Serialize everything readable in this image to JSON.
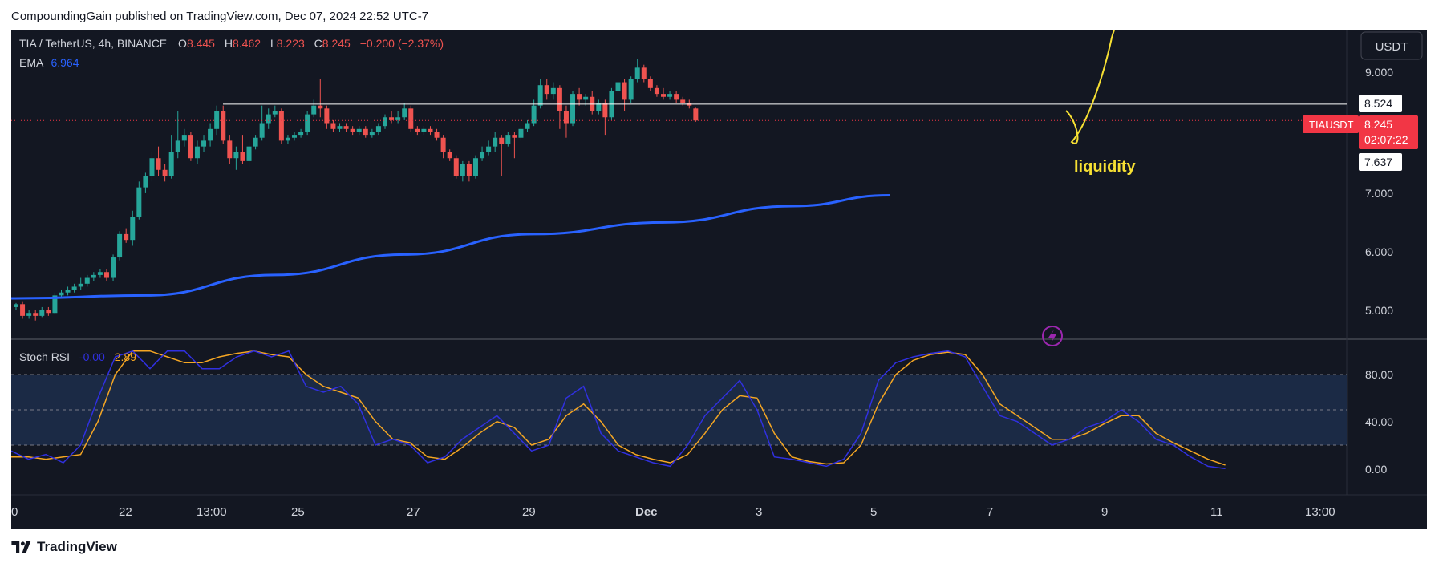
{
  "header": {
    "caption": "CompoundingGain published on TradingView.com, Dec 07, 2024 22:52 UTC-7"
  },
  "legend": {
    "symbol": "TIA / TetherUS, 4h, BINANCE",
    "o_label": "O",
    "o_value": "8.445",
    "h_label": "H",
    "h_value": "8.462",
    "l_label": "L",
    "l_value": "8.223",
    "c_label": "C",
    "c_value": "8.245",
    "change": "−0.200 (−2.37%)",
    "ema_label": "EMA",
    "ema_value": "6.964"
  },
  "currency_button": "USDT",
  "price_axis": {
    "labels": [
      "9.000",
      "7.000",
      "6.000",
      "5.000"
    ],
    "level_high": "8.524",
    "level_low": "7.637",
    "ticker": "TIAUSDT",
    "last_price": "8.245",
    "countdown": "02:07:22"
  },
  "annotation": {
    "text": "liquidity"
  },
  "stoch": {
    "label": "Stoch RSI",
    "k_value": "-0.00",
    "d_value": "2.89",
    "axis_labels": [
      "80.00",
      "40.00",
      "0.00"
    ]
  },
  "time_axis": {
    "labels": [
      "0",
      "22",
      "13:00",
      "25",
      "27",
      "29",
      "Dec",
      "3",
      "5",
      "7",
      "9",
      "11",
      "13:00"
    ]
  },
  "footer": {
    "brand": "TradingView"
  },
  "colors": {
    "background": "#131722",
    "up": "#26a69a",
    "down": "#ef5350",
    "ema": "#2962ff",
    "stoch_k": "#3030e0",
    "stoch_d": "#f5a623",
    "annotation": "#f7e033"
  },
  "chart_data": [
    {
      "type": "candlestick",
      "ylim": [
        4.5,
        9.8
      ],
      "price_ticks": [
        9.0,
        7.0,
        6.0,
        5.0
      ],
      "horizontal_levels": [
        8.524,
        7.637
      ],
      "last_price": 8.245,
      "ema": {
        "name": "EMA",
        "x": [
          0,
          20,
          40,
          60,
          80,
          100,
          120,
          135
        ],
        "values": [
          5.2,
          5.25,
          5.6,
          5.95,
          6.3,
          6.5,
          6.78,
          6.964
        ]
      },
      "candles": [
        [
          5.05,
          5.1,
          5.0,
          5.12
        ],
        [
          5.1,
          4.9,
          4.85,
          5.15
        ],
        [
          4.9,
          4.95,
          4.85,
          5.0
        ],
        [
          4.95,
          4.9,
          4.82,
          5.0
        ],
        [
          4.9,
          5.0,
          4.88,
          5.05
        ],
        [
          5.0,
          4.95,
          4.9,
          5.05
        ],
        [
          4.95,
          5.25,
          4.93,
          5.3
        ],
        [
          5.25,
          5.3,
          5.2,
          5.35
        ],
        [
          5.3,
          5.35,
          5.25,
          5.4
        ],
        [
          5.35,
          5.4,
          5.3,
          5.45
        ],
        [
          5.4,
          5.45,
          5.35,
          5.55
        ],
        [
          5.45,
          5.55,
          5.4,
          5.6
        ],
        [
          5.55,
          5.6,
          5.5,
          5.65
        ],
        [
          5.6,
          5.65,
          5.55,
          5.7
        ],
        [
          5.65,
          5.55,
          5.5,
          5.7
        ],
        [
          5.55,
          5.9,
          5.5,
          5.95
        ],
        [
          5.9,
          6.3,
          5.85,
          6.35
        ],
        [
          6.3,
          6.2,
          6.15,
          6.4
        ],
        [
          6.2,
          6.6,
          6.1,
          6.7
        ],
        [
          6.6,
          7.1,
          6.55,
          7.2
        ],
        [
          7.1,
          7.3,
          7.0,
          7.35
        ],
        [
          7.3,
          7.6,
          7.2,
          7.7
        ],
        [
          7.6,
          7.4,
          7.3,
          7.8
        ],
        [
          7.4,
          7.3,
          7.2,
          7.5
        ],
        [
          7.3,
          7.7,
          7.25,
          8.0
        ],
        [
          7.7,
          7.9,
          7.6,
          8.4
        ],
        [
          7.9,
          8.0,
          7.8,
          8.1
        ],
        [
          8.0,
          7.6,
          7.55,
          8.05
        ],
        [
          7.6,
          7.8,
          7.5,
          7.9
        ],
        [
          7.8,
          7.9,
          7.7,
          8.0
        ],
        [
          7.9,
          8.1,
          7.8,
          8.2
        ],
        [
          8.1,
          8.4,
          8.0,
          8.5
        ],
        [
          8.4,
          7.9,
          7.85,
          8.5
        ],
        [
          7.9,
          7.6,
          7.5,
          8.0
        ],
        [
          7.6,
          7.7,
          7.4,
          7.8
        ],
        [
          7.7,
          7.55,
          7.5,
          8.0
        ],
        [
          7.55,
          7.8,
          7.45,
          7.9
        ],
        [
          7.8,
          7.95,
          7.75,
          8.0
        ],
        [
          7.95,
          8.2,
          7.9,
          8.5
        ],
        [
          8.2,
          8.35,
          8.1,
          8.45
        ],
        [
          8.35,
          8.4,
          8.3,
          8.5
        ],
        [
          8.4,
          7.9,
          7.85,
          8.45
        ],
        [
          7.9,
          7.95,
          7.85,
          8.0
        ],
        [
          7.95,
          8.0,
          7.9,
          8.05
        ],
        [
          8.0,
          8.05,
          7.95,
          8.1
        ],
        [
          8.05,
          8.35,
          8.0,
          8.4
        ],
        [
          8.35,
          8.5,
          8.3,
          8.6
        ],
        [
          8.5,
          8.45,
          8.3,
          8.95
        ],
        [
          8.45,
          8.2,
          8.1,
          8.5
        ],
        [
          8.2,
          8.1,
          8.05,
          8.25
        ],
        [
          8.1,
          8.15,
          8.05,
          8.2
        ],
        [
          8.15,
          8.1,
          8.05,
          8.2
        ],
        [
          8.1,
          8.05,
          8.0,
          8.15
        ],
        [
          8.05,
          8.1,
          8.0,
          8.15
        ],
        [
          8.1,
          8.0,
          7.95,
          8.15
        ],
        [
          8.0,
          8.05,
          7.95,
          8.1
        ],
        [
          8.05,
          8.15,
          8.0,
          8.2
        ],
        [
          8.15,
          8.3,
          8.1,
          8.35
        ],
        [
          8.3,
          8.25,
          8.2,
          8.4
        ],
        [
          8.25,
          8.3,
          8.2,
          8.4
        ],
        [
          8.3,
          8.45,
          8.25,
          8.55
        ],
        [
          8.45,
          8.1,
          8.05,
          8.5
        ],
        [
          8.1,
          8.05,
          8.0,
          8.15
        ],
        [
          8.05,
          8.1,
          8.0,
          8.15
        ],
        [
          8.1,
          8.05,
          8.0,
          8.15
        ],
        [
          8.05,
          7.95,
          7.9,
          8.1
        ],
        [
          7.95,
          7.7,
          7.6,
          8.0
        ],
        [
          7.7,
          7.6,
          7.55,
          7.75
        ],
        [
          7.6,
          7.3,
          7.25,
          7.65
        ],
        [
          7.3,
          7.5,
          7.2,
          7.55
        ],
        [
          7.5,
          7.3,
          7.2,
          7.55
        ],
        [
          7.3,
          7.6,
          7.25,
          7.65
        ],
        [
          7.6,
          7.7,
          7.55,
          7.8
        ],
        [
          7.7,
          7.8,
          7.65,
          7.9
        ],
        [
          7.8,
          7.95,
          7.7,
          8.05
        ],
        [
          7.95,
          7.85,
          7.3,
          8.0
        ],
        [
          7.85,
          8.0,
          7.8,
          8.05
        ],
        [
          8.0,
          7.95,
          7.6,
          8.05
        ],
        [
          7.95,
          8.1,
          7.9,
          8.15
        ],
        [
          8.1,
          8.2,
          8.05,
          8.25
        ],
        [
          8.2,
          8.5,
          8.15,
          8.6
        ],
        [
          8.5,
          8.85,
          8.45,
          8.95
        ],
        [
          8.85,
          8.7,
          8.6,
          8.95
        ],
        [
          8.7,
          8.8,
          8.6,
          8.9
        ],
        [
          8.8,
          8.4,
          8.1,
          8.85
        ],
        [
          8.4,
          8.2,
          7.95,
          8.5
        ],
        [
          8.2,
          8.7,
          8.15,
          8.75
        ],
        [
          8.7,
          8.6,
          8.5,
          8.8
        ],
        [
          8.6,
          8.65,
          8.5,
          8.7
        ],
        [
          8.65,
          8.4,
          8.35,
          8.75
        ],
        [
          8.4,
          8.55,
          8.35,
          8.6
        ],
        [
          8.55,
          8.3,
          8.0,
          8.6
        ],
        [
          8.3,
          8.75,
          8.25,
          8.8
        ],
        [
          8.75,
          8.9,
          8.7,
          8.95
        ],
        [
          8.9,
          8.6,
          8.4,
          8.95
        ],
        [
          8.6,
          8.95,
          8.55,
          9.0
        ],
        [
          8.95,
          9.15,
          8.9,
          9.3
        ],
        [
          9.15,
          8.95,
          8.9,
          9.2
        ],
        [
          8.95,
          8.8,
          8.75,
          9.0
        ],
        [
          8.8,
          8.7,
          8.65,
          8.85
        ],
        [
          8.7,
          8.65,
          8.6,
          8.8
        ],
        [
          8.65,
          8.7,
          8.6,
          8.75
        ],
        [
          8.7,
          8.6,
          8.55,
          8.75
        ],
        [
          8.6,
          8.55,
          8.5,
          8.65
        ],
        [
          8.55,
          8.5,
          8.45,
          8.6
        ],
        [
          8.45,
          8.245,
          8.223,
          8.462
        ]
      ]
    },
    {
      "type": "line",
      "title": "Stoch RSI",
      "ylim": [
        -10,
        110
      ],
      "bands": [
        80,
        50,
        20
      ],
      "series": [
        {
          "name": "K",
          "values": [
            15,
            8,
            12,
            5,
            20,
            60,
            95,
            100,
            85,
            100,
            100,
            85,
            85,
            95,
            100,
            95,
            100,
            70,
            65,
            70,
            55,
            20,
            25,
            20,
            5,
            10,
            25,
            35,
            45,
            30,
            15,
            20,
            60,
            70,
            30,
            15,
            10,
            5,
            2,
            20,
            45,
            60,
            75,
            50,
            10,
            8,
            5,
            2,
            8,
            30,
            75,
            90,
            95,
            98,
            100,
            95,
            70,
            45,
            40,
            30,
            20,
            25,
            35,
            40,
            50,
            40,
            25,
            20,
            10,
            2,
            0
          ]
        },
        {
          "name": "D",
          "values": [
            10,
            10,
            8,
            10,
            12,
            40,
            80,
            100,
            100,
            95,
            90,
            90,
            95,
            98,
            100,
            97,
            95,
            80,
            70,
            65,
            60,
            40,
            25,
            22,
            10,
            8,
            18,
            30,
            40,
            35,
            20,
            25,
            45,
            55,
            40,
            20,
            12,
            8,
            5,
            12,
            30,
            50,
            62,
            60,
            30,
            10,
            6,
            4,
            5,
            20,
            55,
            80,
            92,
            97,
            99,
            97,
            80,
            55,
            45,
            35,
            25,
            25,
            30,
            38,
            45,
            45,
            30,
            22,
            15,
            8,
            3
          ]
        }
      ]
    }
  ]
}
